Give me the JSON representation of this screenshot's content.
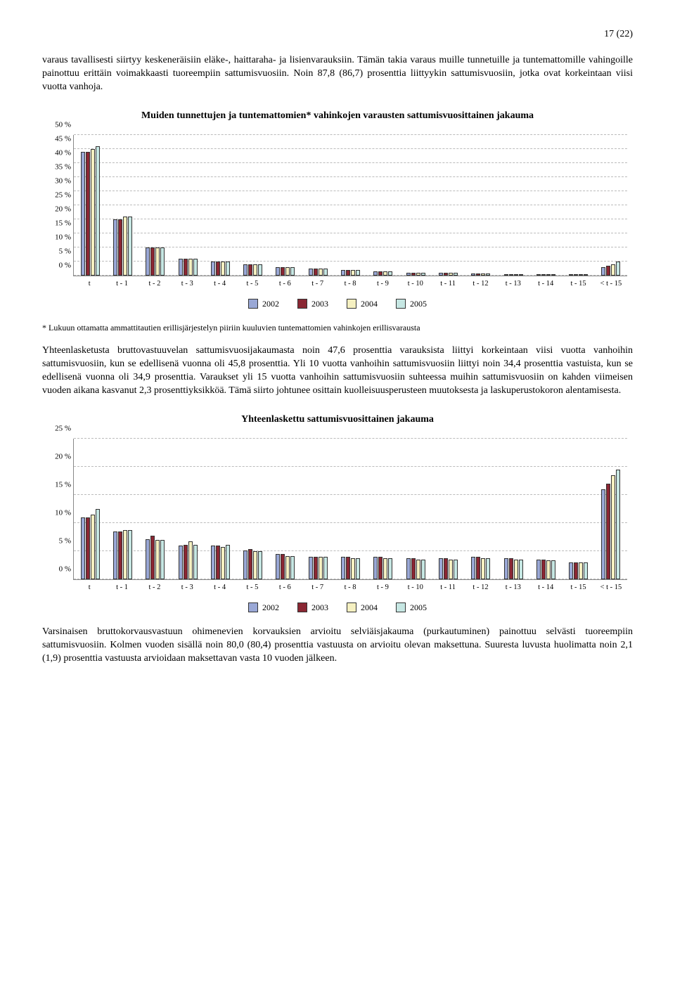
{
  "page_number": "17 (22)",
  "paragraphs": {
    "p1": "varaus tavallisesti siirtyy keskeneräisiin eläke-, haittaraha- ja lisienvarauksiin. Tämän takia varaus muille tunnetuille ja tuntemattomille vahingoille painottuu erittäin voimakkaasti tuoreempiin sattumisvuosiin. Noin 87,8 (86,7) prosenttia liittyykin sattumisvuosiin, jotka ovat korkeintaan viisi vuotta vanhoja.",
    "p2": "* Lukuun ottamatta ammattitautien erillisjärjestelyn piiriin kuuluvien tuntemattomien vahinkojen erillisvarausta",
    "p3": "Yhteenlasketusta bruttovastuuvelan sattumisvuosijakaumasta noin 47,6 prosenttia varauksista liittyi korkeintaan viisi vuotta vanhoihin sattumisvuosiin, kun se edellisenä vuonna oli 45,8 prosenttia. Yli 10 vuotta vanhoihin sattumisvuosiin liittyi noin 34,4 prosenttia vastuista, kun se edellisenä vuonna oli 34,9 prosenttia. Varaukset yli 15 vuotta vanhoihin sattumisvuosiin suhteessa muihin sattumisvuosiin on kahden viimeisen vuoden aikana kasvanut 2,3 prosenttiyksikköä. Tämä siirto johtunee osittain kuolleisuusperusteen muutoksesta ja laskuperustokoron alentamisesta.",
    "p4": "Varsinaisen bruttokorvausvastuun ohimenevien korvauksien arvioitu selviäisjakauma (purkautuminen) painottuu selvästi tuoreempiin sattumisvuosiin. Kolmen vuoden sisällä noin 80,0 (80,4) prosenttia vastuusta on arvioitu olevan maksettuna. Suuresta luvusta huolimatta noin 2,1 (1,9) prosenttia vastuusta arvioidaan maksettavan vasta 10 vuoden jälkeen."
  },
  "chart1": {
    "title": "Muiden tunnettujen ja tuntemattomien* vahinkojen varausten sattumisvuosittainen jakauma",
    "ymax": 50,
    "yticks": [
      0,
      5,
      10,
      15,
      20,
      25,
      30,
      35,
      40,
      45,
      50
    ],
    "ytick_suffix": " %",
    "categories": [
      "t",
      "t - 1",
      "t - 2",
      "t - 3",
      "t - 4",
      "t - 5",
      "t - 6",
      "t - 7",
      "t - 8",
      "t - 9",
      "t - 10",
      "t - 11",
      "t - 12",
      "t - 13",
      "t - 14",
      "t - 15",
      "< t - 15"
    ],
    "series": [
      {
        "name": "2002",
        "color": "#9aa8d6",
        "values": [
          44,
          20,
          10,
          6,
          5,
          4,
          3,
          2.5,
          2,
          1.5,
          1.2,
          1,
          0.8,
          0.6,
          0.5,
          0.4,
          3
        ]
      },
      {
        "name": "2003",
        "color": "#8a2733",
        "values": [
          44,
          20,
          10,
          6,
          5,
          4,
          3,
          2.5,
          2,
          1.5,
          1.2,
          1,
          0.8,
          0.6,
          0.5,
          0.4,
          3.5
        ]
      },
      {
        "name": "2004",
        "color": "#f5f0c1",
        "values": [
          45,
          21,
          10,
          6,
          5,
          4,
          3,
          2.5,
          2,
          1.5,
          1.2,
          1,
          0.8,
          0.6,
          0.5,
          0.4,
          4
        ]
      },
      {
        "name": "2005",
        "color": "#c6e7e3",
        "values": [
          46,
          21,
          10,
          6,
          5,
          4,
          3,
          2.5,
          2,
          1.5,
          1.2,
          1,
          0.8,
          0.6,
          0.5,
          0.4,
          5
        ]
      }
    ]
  },
  "chart2": {
    "title": "Yhteenlaskettu sattumisvuosittainen jakauma",
    "ymax": 25,
    "yticks": [
      0,
      5,
      10,
      15,
      20,
      25
    ],
    "ytick_suffix": " %",
    "categories": [
      "t",
      "t - 1",
      "t - 2",
      "t - 3",
      "t - 4",
      "t - 5",
      "t - 6",
      "t - 7",
      "t - 8",
      "t - 9",
      "t - 10",
      "t - 11",
      "t - 12",
      "t - 13",
      "t - 14",
      "t - 15",
      "< t - 15"
    ],
    "series": [
      {
        "name": "2002",
        "color": "#9aa8d6",
        "values": [
          11,
          8.5,
          7.2,
          6,
          6,
          5.2,
          4.5,
          4,
          4,
          4,
          3.8,
          3.8,
          4,
          3.8,
          3.5,
          3,
          16
        ]
      },
      {
        "name": "2003",
        "color": "#8a2733",
        "values": [
          11,
          8.5,
          7.8,
          6.2,
          6,
          5.4,
          4.6,
          4,
          4,
          4,
          3.8,
          3.8,
          4,
          3.8,
          3.5,
          3,
          17
        ]
      },
      {
        "name": "2004",
        "color": "#f5f0c1",
        "values": [
          11.5,
          8.8,
          7,
          6.8,
          5.8,
          5,
          4.2,
          4,
          3.8,
          3.8,
          3.6,
          3.6,
          3.8,
          3.6,
          3.4,
          3,
          18.5
        ]
      },
      {
        "name": "2005",
        "color": "#c6e7e3",
        "values": [
          12.5,
          8.8,
          7,
          6.2,
          6.2,
          5,
          4.2,
          4,
          3.8,
          3.8,
          3.6,
          3.6,
          3.8,
          3.6,
          3.4,
          3,
          19.5
        ]
      }
    ]
  },
  "legend_labels": [
    "2002",
    "2003",
    "2004",
    "2005"
  ],
  "legend_colors": [
    "#9aa8d6",
    "#8a2733",
    "#f5f0c1",
    "#c6e7e3"
  ]
}
